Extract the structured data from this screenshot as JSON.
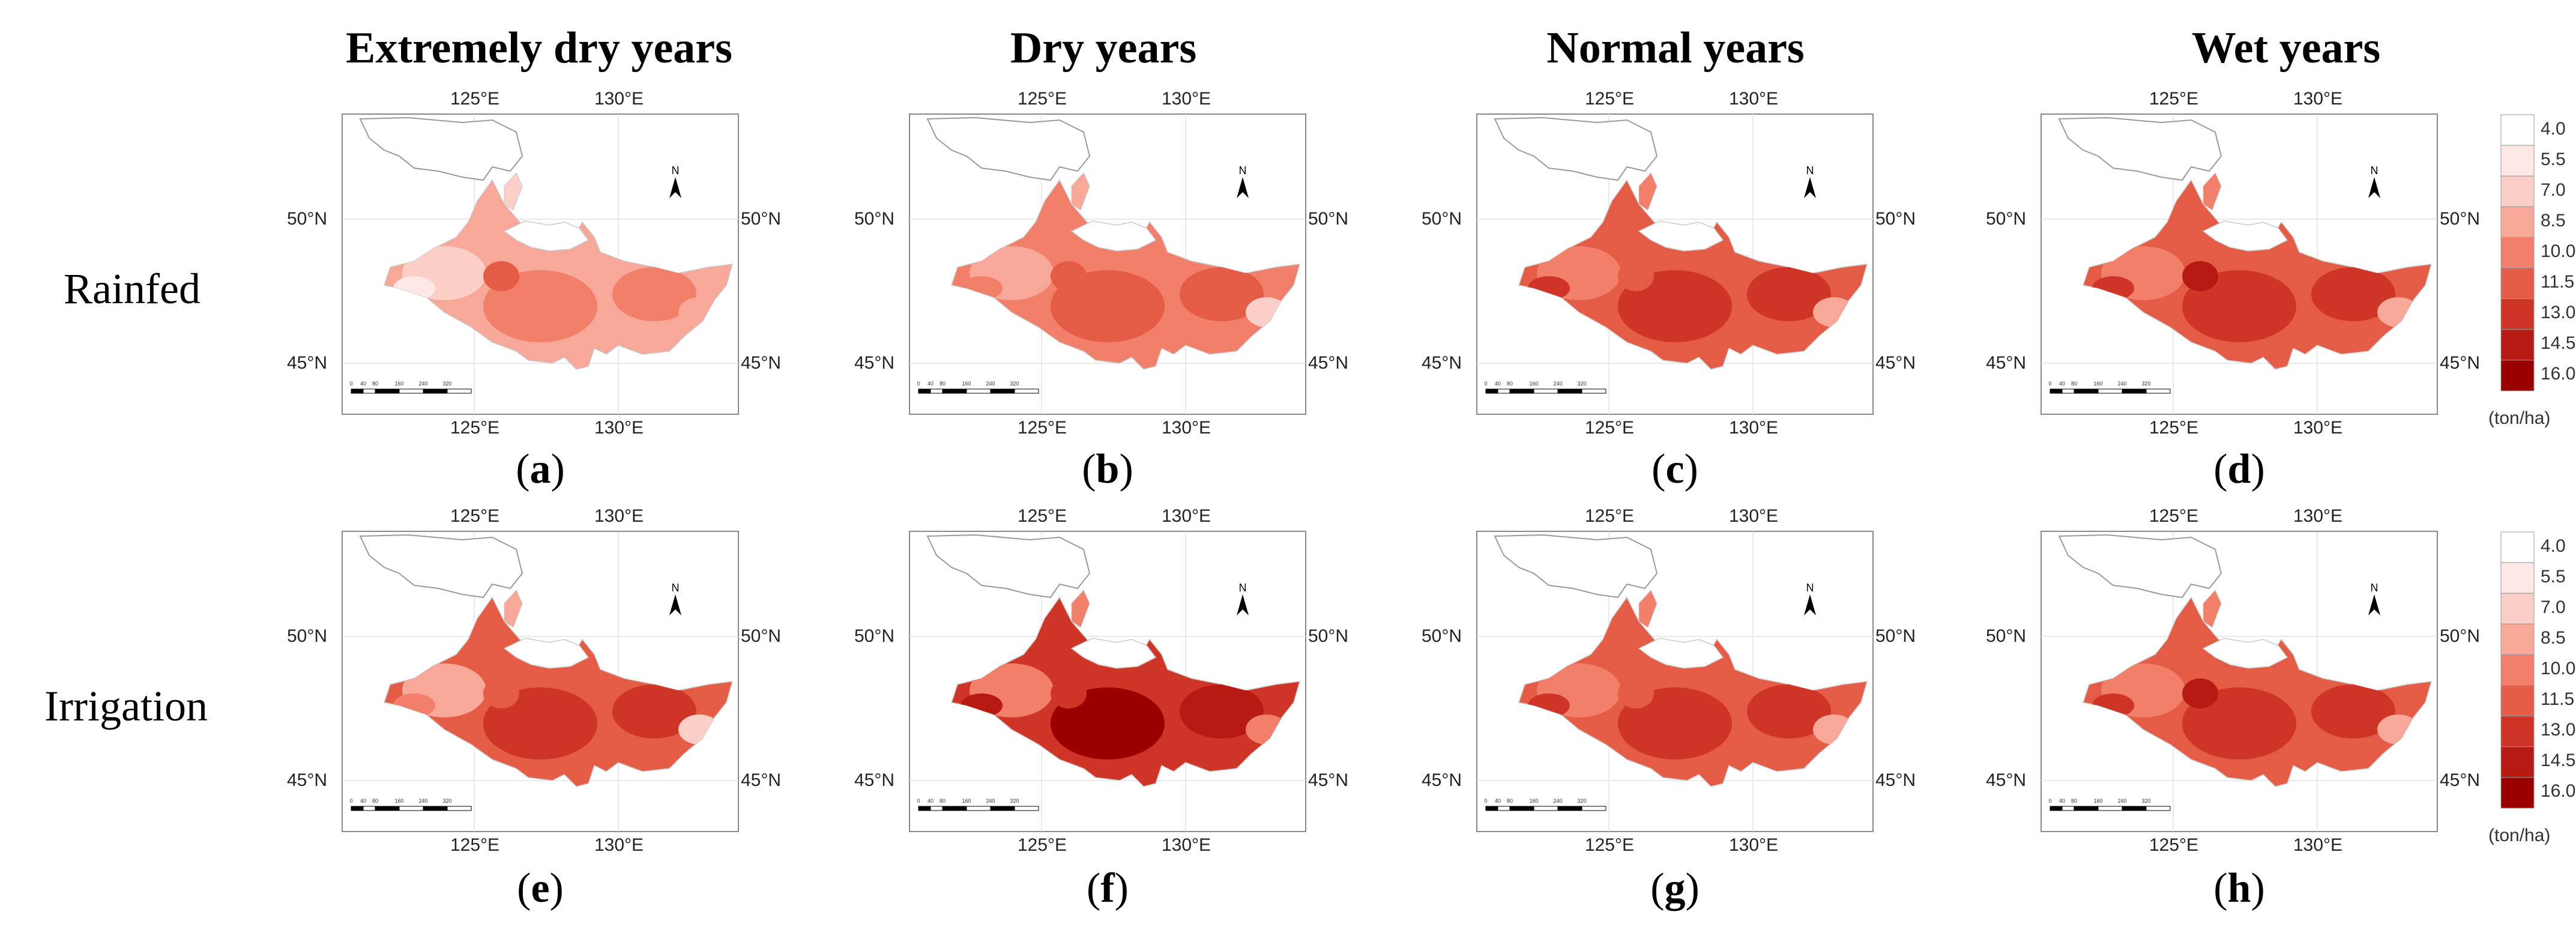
{
  "columns": [
    "Extremely dry years",
    "Dry years",
    "Normal years",
    "Wet years"
  ],
  "rows": [
    "Rainfed",
    "Irrigation"
  ],
  "axes": {
    "lon_ticks": [
      "125°E",
      "130°E"
    ],
    "lat_ticks": [
      "50°N",
      "45°N"
    ],
    "north": "N",
    "scale_labels": [
      "0",
      "40",
      "80",
      "160",
      "240",
      "320"
    ]
  },
  "legend": {
    "unit": "(ton/ha)",
    "ticks": [
      "4.0",
      "5.5",
      "7.0",
      "8.5",
      "10.0",
      "11.5",
      "13.0",
      "14.5",
      "16.0"
    ],
    "colors": [
      "#ffffff",
      "#fde8e5",
      "#fbcfc7",
      "#f7a898",
      "#f27f6a",
      "#e45c46",
      "#cf3526",
      "#b71a12",
      "#9a0000"
    ]
  },
  "panels": [
    {
      "letter": "a",
      "row": 0,
      "col": 0,
      "base": "#f7a898",
      "blobs": [
        {
          "c": "#fbcfc7"
        },
        {
          "c": "#fde8e5"
        },
        {
          "c": "#f27f6a"
        },
        {
          "c": "#f27f6a"
        },
        {
          "c": "#e45c46"
        },
        {
          "c": "#f7a898"
        }
      ]
    },
    {
      "letter": "b",
      "row": 0,
      "col": 1,
      "base": "#f27f6a",
      "blobs": [
        {
          "c": "#f7a898"
        },
        {
          "c": "#f27f6a"
        },
        {
          "c": "#e45c46"
        },
        {
          "c": "#e45c46"
        },
        {
          "c": "#e45c46"
        },
        {
          "c": "#fbcfc7"
        }
      ]
    },
    {
      "letter": "c",
      "row": 0,
      "col": 2,
      "base": "#e45c46",
      "blobs": [
        {
          "c": "#f27f6a"
        },
        {
          "c": "#cf3526"
        },
        {
          "c": "#cf3526"
        },
        {
          "c": "#cf3526"
        },
        {
          "c": "#e45c46"
        },
        {
          "c": "#f7a898"
        }
      ]
    },
    {
      "letter": "d",
      "row": 0,
      "col": 3,
      "base": "#e45c46",
      "blobs": [
        {
          "c": "#f27f6a"
        },
        {
          "c": "#cf3526"
        },
        {
          "c": "#cf3526"
        },
        {
          "c": "#cf3526"
        },
        {
          "c": "#b71a12"
        },
        {
          "c": "#f7a898"
        }
      ]
    },
    {
      "letter": "e",
      "row": 1,
      "col": 0,
      "base": "#e45c46",
      "blobs": [
        {
          "c": "#f7a898"
        },
        {
          "c": "#f27f6a"
        },
        {
          "c": "#cf3526"
        },
        {
          "c": "#cf3526"
        },
        {
          "c": "#e45c46"
        },
        {
          "c": "#fbcfc7"
        }
      ]
    },
    {
      "letter": "f",
      "row": 1,
      "col": 1,
      "base": "#cf3526",
      "blobs": [
        {
          "c": "#f27f6a"
        },
        {
          "c": "#b71a12"
        },
        {
          "c": "#9a0000"
        },
        {
          "c": "#b71a12"
        },
        {
          "c": "#cf3526"
        },
        {
          "c": "#f27f6a"
        }
      ]
    },
    {
      "letter": "g",
      "row": 1,
      "col": 2,
      "base": "#e45c46",
      "blobs": [
        {
          "c": "#f27f6a"
        },
        {
          "c": "#cf3526"
        },
        {
          "c": "#cf3526"
        },
        {
          "c": "#cf3526"
        },
        {
          "c": "#e45c46"
        },
        {
          "c": "#f7a898"
        }
      ]
    },
    {
      "letter": "h",
      "row": 1,
      "col": 3,
      "base": "#e45c46",
      "blobs": [
        {
          "c": "#f27f6a"
        },
        {
          "c": "#cf3526"
        },
        {
          "c": "#cf3526"
        },
        {
          "c": "#cf3526"
        },
        {
          "c": "#b71a12"
        },
        {
          "c": "#f7a898"
        }
      ]
    }
  ]
}
